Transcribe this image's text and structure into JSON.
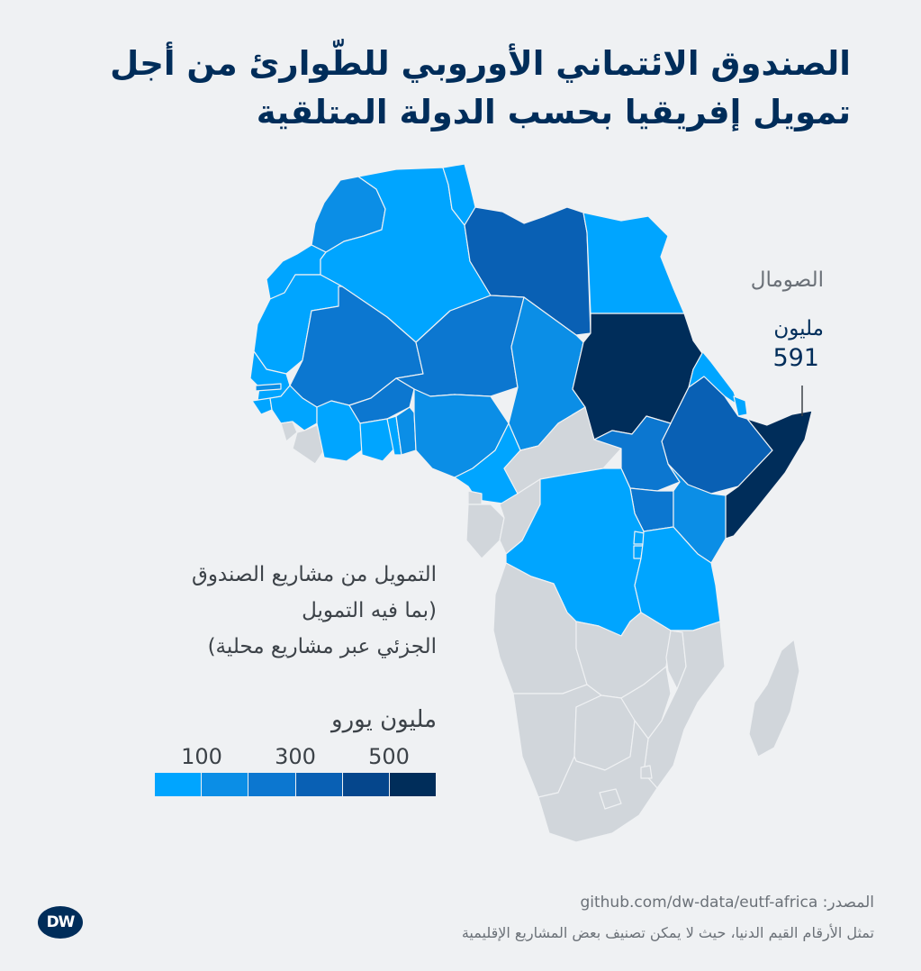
{
  "title": {
    "line1": "الصندوق الائتماني الأوروبي للطّوارئ من أجل",
    "line2": "تمويل إفريقيا بحسب الدولة المتلقية"
  },
  "callout": {
    "country": "الصومال",
    "unit": "مليون",
    "value": "591"
  },
  "legend": {
    "description": [
      "التمويل من مشاريع الصندوق",
      "(بما فيه التمويل",
      "الجزئي عبر مشاريع محلية)"
    ],
    "unit": "مليون يورو",
    "ticks": [
      "100",
      "300",
      "500"
    ],
    "colors": [
      "#00a5ff",
      "#0b8ee6",
      "#0c77d0",
      "#0960b4",
      "#05468c",
      "#002d5a"
    ]
  },
  "colors": {
    "no_data": "#d1d6db",
    "border": "#eff1f3",
    "title": "#002d5a"
  },
  "source": {
    "label": "المصدر:",
    "url": "github.com/dw-data/eutf-africa"
  },
  "footnote": "تمثل الأرقام القيم الدنيا، حيث لا يمكن تصنيف بعض المشاريع الإقليمية",
  "logo": "DW",
  "map": {
    "regions": [
      {
        "name": "Morocco",
        "level": 1
      },
      {
        "name": "Western Sahara",
        "level": 0
      },
      {
        "name": "Algeria",
        "level": 0
      },
      {
        "name": "Tunisia",
        "level": 0
      },
      {
        "name": "Libya",
        "level": 3
      },
      {
        "name": "Egypt",
        "level": 0
      },
      {
        "name": "Mauritania",
        "level": 0
      },
      {
        "name": "Mali",
        "level": 2
      },
      {
        "name": "Niger",
        "level": 2
      },
      {
        "name": "Chad",
        "level": 1
      },
      {
        "name": "Sudan",
        "level": 5
      },
      {
        "name": "Eritrea",
        "level": 0
      },
      {
        "name": "Djibouti",
        "level": 0
      },
      {
        "name": "Ethiopia",
        "level": 3
      },
      {
        "name": "Somalia",
        "level": 5
      },
      {
        "name": "Senegal",
        "level": 0
      },
      {
        "name": "Gambia",
        "level": 1
      },
      {
        "name": "Guinea-Bissau",
        "level": 0
      },
      {
        "name": "Guinea",
        "level": 0
      },
      {
        "name": "Sierra Leone",
        "level": -1
      },
      {
        "name": "Liberia",
        "level": -1
      },
      {
        "name": "Ivory Coast",
        "level": 0
      },
      {
        "name": "Burkina Faso",
        "level": 2
      },
      {
        "name": "Ghana",
        "level": 0
      },
      {
        "name": "Togo",
        "level": 0
      },
      {
        "name": "Benin",
        "level": 1
      },
      {
        "name": "Nigeria",
        "level": 1
      },
      {
        "name": "Cameroon",
        "level": 0
      },
      {
        "name": "Central African Republic",
        "level": -1
      },
      {
        "name": "South Sudan",
        "level": 2
      },
      {
        "name": "Uganda",
        "level": 2
      },
      {
        "name": "Kenya",
        "level": 1
      },
      {
        "name": "Equatorial Guinea",
        "level": -1
      },
      {
        "name": "Gabon",
        "level": -1
      },
      {
        "name": "Republic of Congo",
        "level": -1
      },
      {
        "name": "DR Congo",
        "level": 0
      },
      {
        "name": "Rwanda",
        "level": 0
      },
      {
        "name": "Burundi",
        "level": 0
      },
      {
        "name": "Tanzania",
        "level": 0
      },
      {
        "name": "Angola",
        "level": -1
      },
      {
        "name": "Zambia",
        "level": -1
      },
      {
        "name": "Malawi",
        "level": -1
      },
      {
        "name": "Mozambique",
        "level": -1
      },
      {
        "name": "Namibia",
        "level": -1
      },
      {
        "name": "Botswana",
        "level": -1
      },
      {
        "name": "Zimbabwe",
        "level": -1
      },
      {
        "name": "South Africa",
        "level": -1
      },
      {
        "name": "Lesotho",
        "level": -1
      },
      {
        "name": "Eswatini",
        "level": -1
      },
      {
        "name": "Madagascar",
        "level": -1
      }
    ]
  }
}
